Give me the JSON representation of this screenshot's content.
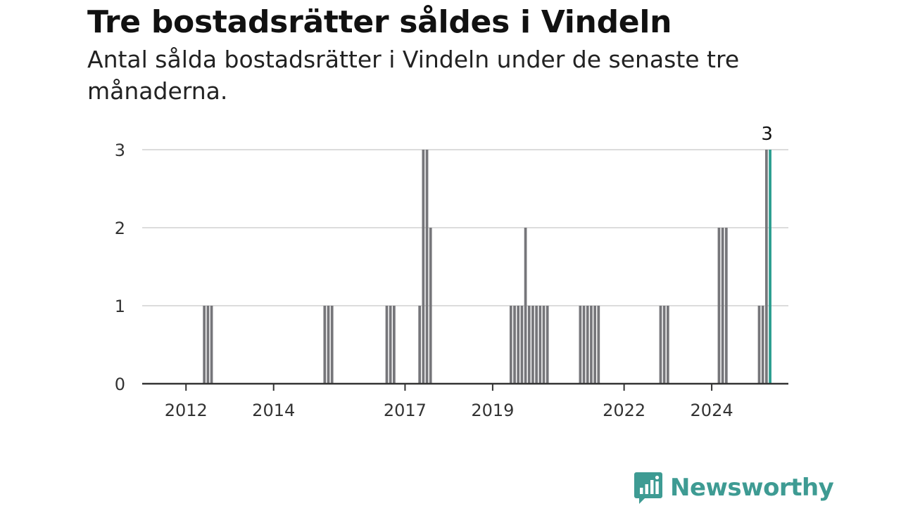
{
  "header": {
    "title": "Tre bostadsrätter såldes i Vindeln",
    "subtitle": "Antal sålda bostadsrätter i Vindeln under de senaste tre månaderna."
  },
  "brand": {
    "name": "Newsworthy",
    "color": "#3e9b93"
  },
  "colors": {
    "bar": "#76767a",
    "highlight": "#2a9d8f",
    "grid": "#dcdcdc",
    "axis": "#333333"
  },
  "chart_data": {
    "type": "bar",
    "title": "Tre bostadsrätter såldes i Vindeln",
    "subtitle": "Antal sålda bostadsrätter i Vindeln under de senaste tre månaderna.",
    "xlabel": "",
    "ylabel": "",
    "x_axis": "time (rolling three-month periods)",
    "ylim": [
      0,
      3
    ],
    "yticks": [
      0,
      1,
      2,
      3
    ],
    "xticks": [
      "2012",
      "2014",
      "2017",
      "2019",
      "2022",
      "2024"
    ],
    "grid": true,
    "legend": "none",
    "annotation": "3",
    "series": [
      {
        "points": [
          {
            "date": "2012-06",
            "value": 1
          },
          {
            "date": "2012-07",
            "value": 1
          },
          {
            "date": "2012-08",
            "value": 1
          },
          {
            "date": "2015-03",
            "value": 1
          },
          {
            "date": "2015-04",
            "value": 1
          },
          {
            "date": "2015-05",
            "value": 1
          },
          {
            "date": "2016-08",
            "value": 1
          },
          {
            "date": "2016-09",
            "value": 1
          },
          {
            "date": "2016-10",
            "value": 1
          },
          {
            "date": "2017-05",
            "value": 1
          },
          {
            "date": "2017-06",
            "value": 3
          },
          {
            "date": "2017-07",
            "value": 3
          },
          {
            "date": "2017-08",
            "value": 2
          },
          {
            "date": "2019-06",
            "value": 1
          },
          {
            "date": "2019-07",
            "value": 1
          },
          {
            "date": "2019-08",
            "value": 1
          },
          {
            "date": "2019-09",
            "value": 1
          },
          {
            "date": "2019-10",
            "value": 2
          },
          {
            "date": "2019-11",
            "value": 1
          },
          {
            "date": "2019-12",
            "value": 1
          },
          {
            "date": "2020-01",
            "value": 1
          },
          {
            "date": "2020-02",
            "value": 1
          },
          {
            "date": "2020-03",
            "value": 1
          },
          {
            "date": "2020-04",
            "value": 1
          },
          {
            "date": "2021-01",
            "value": 1
          },
          {
            "date": "2021-02",
            "value": 1
          },
          {
            "date": "2021-03",
            "value": 1
          },
          {
            "date": "2021-04",
            "value": 1
          },
          {
            "date": "2021-05",
            "value": 1
          },
          {
            "date": "2021-06",
            "value": 1
          },
          {
            "date": "2022-11",
            "value": 1
          },
          {
            "date": "2022-12",
            "value": 1
          },
          {
            "date": "2023-01",
            "value": 1
          },
          {
            "date": "2024-03",
            "value": 2
          },
          {
            "date": "2024-04",
            "value": 2
          },
          {
            "date": "2024-05",
            "value": 2
          },
          {
            "date": "2025-02",
            "value": 1
          },
          {
            "date": "2025-03",
            "value": 1
          },
          {
            "date": "2025-04",
            "value": 3
          },
          {
            "date": "2025-05",
            "value": 3
          }
        ]
      }
    ]
  }
}
